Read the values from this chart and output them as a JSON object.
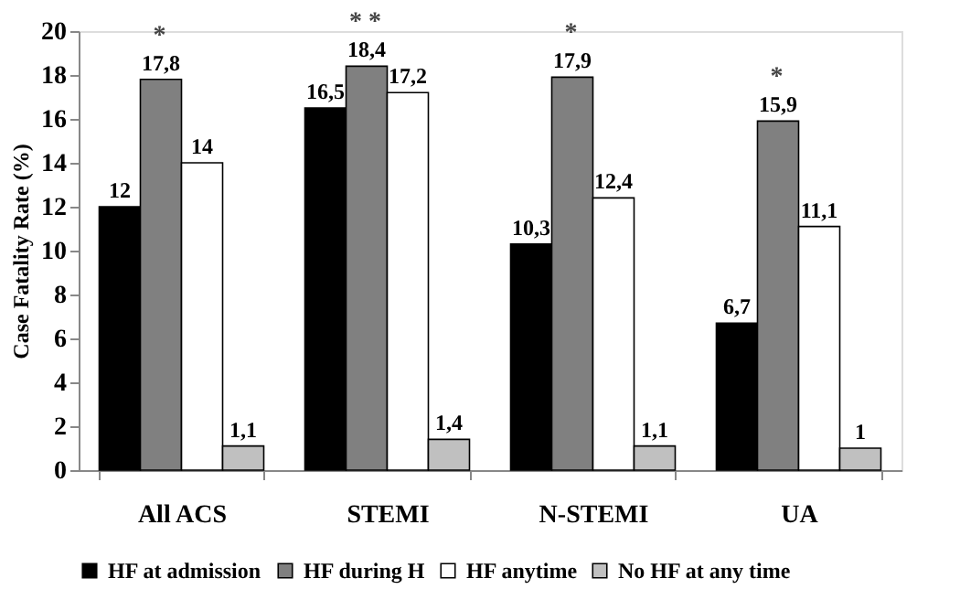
{
  "chart_data": {
    "type": "bar",
    "ylabel": "Case Fatality Rate (%)",
    "categories": [
      "All ACS",
      "STEMI",
      "N-STEMI",
      "UA"
    ],
    "series": [
      {
        "name": "HF at admission",
        "color": "#000000",
        "values": [
          12,
          16.5,
          10.3,
          6.7
        ],
        "value_labels": [
          "12",
          "16,5",
          "10,3",
          "6,7"
        ]
      },
      {
        "name": "HF during H",
        "color": "#808080",
        "values": [
          17.8,
          18.4,
          17.9,
          15.9
        ],
        "value_labels": [
          "17,8",
          "18,4",
          "17,9",
          "15,9"
        ]
      },
      {
        "name": "HF anytime",
        "color": "#ffffff",
        "values": [
          14,
          17.2,
          12.4,
          11.1
        ],
        "value_labels": [
          "14",
          "17,2",
          "12,4",
          "11,1"
        ]
      },
      {
        "name": "No HF at any time",
        "color": "#c0c0c0",
        "values": [
          1.1,
          1.4,
          1.1,
          1
        ],
        "value_labels": [
          "1,1",
          "1,4",
          "1,1",
          "1"
        ]
      }
    ],
    "annotations": [
      "*",
      "* *",
      "*",
      "*"
    ],
    "ylim": [
      0,
      20
    ],
    "yticks": [
      0,
      2,
      4,
      6,
      8,
      10,
      12,
      14,
      16,
      18,
      20
    ],
    "grid": false,
    "legend": "bottom"
  }
}
